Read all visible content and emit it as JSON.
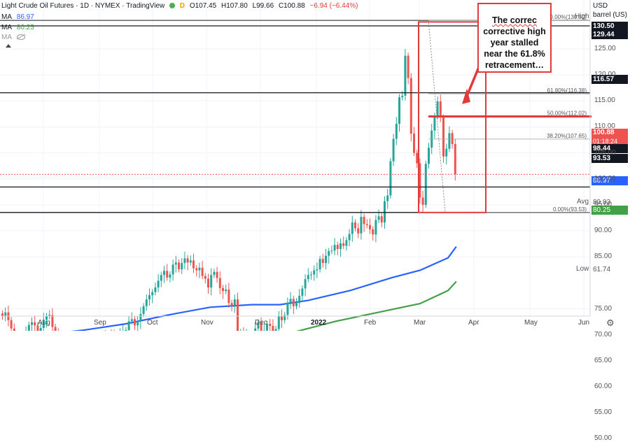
{
  "header": {
    "symbol_line": "Light Crude Oil Futures · 1D · NYMEX · TradingView",
    "dot": "D",
    "open": "O107.45",
    "high": "H107.80",
    "low": "L99.66",
    "close": "C100.88",
    "change": "−6.94 (−6.44%)",
    "ma1_label": "MA",
    "ma1_value": "86.97",
    "ma2_label": "MA",
    "ma2_value": "80.25",
    "ma3_label": "MA",
    "ma1_color": "#2962ff",
    "ma2_color": "#43a047"
  },
  "currency_button": "USD",
  "unit_select": "barrel (US)",
  "callout_lines": [
    "The correc",
    "corrective high",
    "year stalled",
    "near the 61.8%",
    "retracement…"
  ],
  "right_labels": {
    "high_label": "High",
    "high_value": "130.50",
    "level_129": "129.44",
    "level_116": "116.57",
    "last_price": "100.88",
    "countdown": "01:18:24",
    "level_98": "98.44",
    "level_93": "93.53",
    "ma1": "86.97",
    "avg_label": "Avg",
    "avg_value": "80.83",
    "ma2": "80.25",
    "low_label": "Low",
    "low_value": "61.74"
  },
  "fib_labels": {
    "f0": "0.00%(130.50)",
    "f618": "61.80%(116.38)",
    "f50": "50.00%(112.02)",
    "f382": "38.20%(107.65)",
    "f100": "0.00%(93.53)"
  },
  "y_ticks": [
    "125.00",
    "120.00",
    "115.00",
    "110.00",
    "105.00",
    "100.00",
    "95.00",
    "90.00",
    "85.00",
    "75.00",
    "70.00",
    "65.00",
    "60.00",
    "55.00",
    "50.00"
  ],
  "x_ticks": [
    "Aug",
    "Sep",
    "Oct",
    "Nov",
    "Dec",
    "2022",
    "Feb",
    "Mar",
    "Apr",
    "May",
    "Jun"
  ],
  "chart_data": {
    "type": "candlestick",
    "ylim": [
      48,
      133
    ],
    "x_ticks": [
      "Aug",
      "Sep",
      "Oct",
      "Nov",
      "Dec",
      "2022",
      "Feb",
      "Mar",
      "Apr",
      "May",
      "Jun"
    ],
    "closes": [
      73.5,
      74.3,
      72.8,
      71.2,
      68.1,
      66.5,
      68.4,
      69.7,
      70.3,
      71.9,
      72.4,
      71.8,
      70.7,
      71.3,
      72.9,
      73.6,
      73.8,
      71.5,
      70.3,
      69.5,
      69.1,
      68.0,
      67.4,
      68.3,
      66.5,
      65.5,
      62.3,
      63.1,
      64.2,
      66.8,
      68.4,
      68.1,
      68.7,
      69.2,
      69.6,
      69.0,
      70.1,
      69.7,
      68.8,
      69.6,
      70.3,
      70.6,
      70.9,
      72.6,
      73.0,
      71.8,
      72.6,
      74.0,
      75.5,
      76.8,
      77.6,
      78.2,
      79.1,
      80.4,
      81.5,
      82.3,
      81.0,
      81.6,
      83.5,
      83.9,
      82.6,
      83.8,
      84.7,
      83.9,
      84.3,
      82.8,
      82.4,
      82.9,
      81.3,
      80.8,
      79.1,
      81.5,
      82.1,
      80.9,
      79.0,
      78.4,
      78.7,
      76.1,
      75.7,
      76.8,
      68.2,
      70.5,
      66.2,
      69.8,
      66.6,
      65.6,
      71.2,
      72.4,
      70.7,
      70.8,
      72.1,
      71.7,
      70.5,
      71.1,
      73.6,
      72.8,
      73.8,
      76.2,
      76.9,
      75.5,
      76.1,
      77.5,
      78.9,
      80.7,
      81.5,
      81.6,
      82.4,
      82.6,
      84.6,
      83.8,
      85.2,
      86.1,
      86.2,
      87.3,
      86.5,
      87.6,
      87.1,
      88.2,
      89.4,
      91.6,
      90.5,
      89.5,
      92.7,
      91.3,
      91.1,
      90.3,
      89.3,
      92.1,
      92.8,
      91.6,
      95.7,
      96.8,
      103.4,
      107.7,
      110.6,
      115.7,
      116.0,
      123.7,
      119.4,
      108.7,
      105.0,
      103.0,
      96.4,
      95.0,
      102.9,
      106.0,
      109.3,
      112.1,
      114.9,
      111.8,
      104.3,
      105.8,
      108.8,
      106.7,
      100.9
    ],
    "moving_averages": [
      {
        "name": "MA",
        "last_value": 86.97,
        "color": "#2962ff"
      },
      {
        "name": "MA",
        "last_value": 80.25,
        "color": "#43a047"
      }
    ],
    "fibonacci": [
      {
        "label": "0.00%",
        "value": 130.5
      },
      {
        "label": "61.80%",
        "value": 116.38
      },
      {
        "label": "50.00%",
        "value": 112.02
      },
      {
        "label": "38.20%",
        "value": 107.65
      },
      {
        "label": "0.00%",
        "value": 93.53
      }
    ],
    "horizontal_lines": [
      129.44,
      116.57,
      98.44,
      93.53
    ],
    "last_price": 100.88,
    "high": 130.5,
    "low": 61.74,
    "avg": 80.83
  }
}
